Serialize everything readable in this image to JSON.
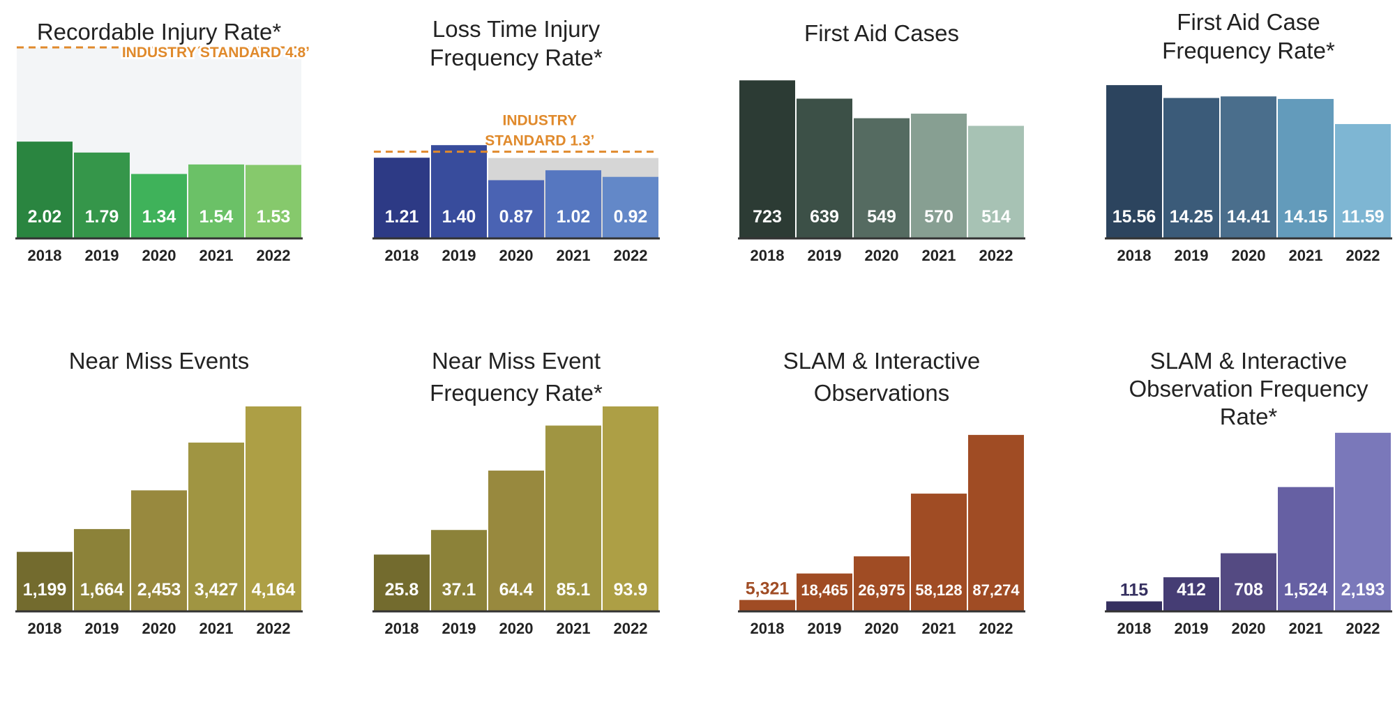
{
  "colors": {
    "standard_line": "#e08a2c",
    "axis": "#333333",
    "title_text": "#222222",
    "value_text": "#ffffff",
    "standard_band": "#d6d6d6",
    "chart1_background": "#f3f5f7"
  },
  "chart_data": [
    {
      "type": "bar",
      "title": "Recordable Injury Rate*",
      "categories": [
        "2018",
        "2019",
        "2020",
        "2021",
        "2022"
      ],
      "values": [
        2.02,
        1.79,
        1.34,
        1.54,
        1.53
      ],
      "value_labels": [
        "2.02",
        "1.79",
        "1.34",
        "1.54",
        "1.53"
      ],
      "bar_colors": [
        "#2a8540",
        "#35964a",
        "#3fb25a",
        "#6bc167",
        "#86c96c"
      ],
      "ylim": [
        0,
        4.0
      ],
      "standard_line": {
        "value": 4.8,
        "label_lines": [
          "INDUSTRY STANDARD 4.8ʼ"
        ]
      }
    },
    {
      "type": "bar",
      "title": "Loss Time Injury Frequency Rate*",
      "categories": [
        "2018",
        "2019",
        "2020",
        "2021",
        "2022"
      ],
      "values": [
        1.21,
        1.4,
        0.87,
        1.02,
        0.92
      ],
      "value_labels": [
        "1.21",
        "1.40",
        "0.87",
        "1.02",
        "0.92"
      ],
      "bar_colors": [
        "#2d3a85",
        "#384c9c",
        "#4a63b3",
        "#5677c0",
        "#6388c8"
      ],
      "ylim": [
        0,
        1.75
      ],
      "standard_line": {
        "value": 1.3,
        "label_lines": [
          "INDUSTRY",
          "STANDARD 1.3ʼ"
        ]
      }
    },
    {
      "type": "bar",
      "title": "First Aid Cases",
      "categories": [
        "2018",
        "2019",
        "2020",
        "2021",
        "2022"
      ],
      "values": [
        723,
        639,
        549,
        570,
        514
      ],
      "value_labels": [
        "723",
        "639",
        "549",
        "570",
        "514"
      ],
      "bar_colors": [
        "#2c3b34",
        "#3c5047",
        "#556b61",
        "#879f92",
        "#a7c2b4"
      ],
      "ylim": [
        0,
        900
      ]
    },
    {
      "type": "bar",
      "title": "First Aid Case Frequency Rate*",
      "categories": [
        "2018",
        "2019",
        "2020",
        "2021",
        "2022"
      ],
      "values": [
        15.56,
        14.25,
        14.41,
        14.15,
        11.59
      ],
      "value_labels": [
        "15.56",
        "14.25",
        "14.41",
        "14.15",
        "11.59"
      ],
      "bar_colors": [
        "#2c445e",
        "#3b5b79",
        "#4a6e8c",
        "#639bbb",
        "#7eb6d3"
      ],
      "ylim": [
        0,
        17.7
      ]
    },
    {
      "type": "bar",
      "title": "Near Miss Events",
      "categories": [
        "2018",
        "2019",
        "2020",
        "2021",
        "2022"
      ],
      "values": [
        1199,
        1664,
        2453,
        3427,
        4164
      ],
      "value_labels": [
        "1,199",
        "1,664",
        "2,453",
        "3,427",
        "4,164"
      ],
      "bar_colors": [
        "#736b2e",
        "#8c8239",
        "#98893e",
        "#a09542",
        "#ad9f45"
      ],
      "ylim": [
        0,
        4164
      ]
    },
    {
      "type": "bar",
      "title": "Near Miss Event Frequency Rate*",
      "categories": [
        "2018",
        "2019",
        "2020",
        "2021",
        "2022"
      ],
      "values": [
        25.8,
        37.1,
        64.4,
        85.1,
        93.9
      ],
      "value_labels": [
        "25.8",
        "37.1",
        "64.4",
        "85.1",
        "93.9"
      ],
      "bar_colors": [
        "#736b2e",
        "#8c8239",
        "#98893e",
        "#a09542",
        "#ad9f45"
      ],
      "ylim": [
        0,
        93.9
      ]
    },
    {
      "type": "bar",
      "title": "SLAM & Interactive Observations",
      "categories": [
        "2018",
        "2019",
        "2020",
        "2021",
        "2022"
      ],
      "values": [
        5321,
        18465,
        26975,
        58128,
        87274
      ],
      "value_labels": [
        "5,321",
        "18,465",
        "26,975",
        "58,128",
        "87,274"
      ],
      "bar_colors": [
        "#a04c24",
        "#a04c24",
        "#a04c24",
        "#a04c24",
        "#a04c24"
      ],
      "ylim": [
        0,
        99000
      ]
    },
    {
      "type": "bar",
      "title": "SLAM & Interactive Observation Frequency Rate*",
      "categories": [
        "2018",
        "2019",
        "2020",
        "2021",
        "2022"
      ],
      "values": [
        115,
        412,
        708,
        1524,
        2193
      ],
      "value_labels": [
        "115",
        "412",
        "708",
        "1,524",
        "2,193"
      ],
      "bar_colors": [
        "#363060",
        "#453d74",
        "#544a82",
        "#6660a3",
        "#7a78ba"
      ],
      "ylim": [
        0,
        2200
      ]
    }
  ]
}
